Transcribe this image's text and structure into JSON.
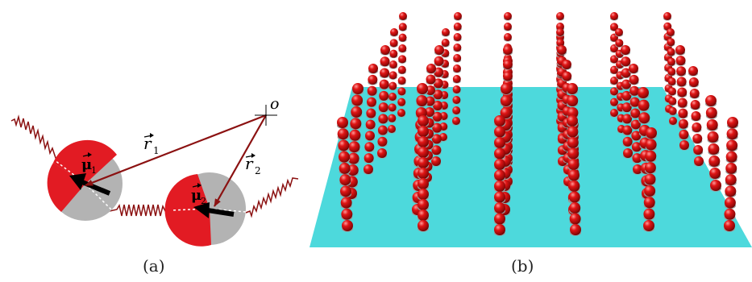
{
  "panel_a": {
    "caption": "(a)",
    "origin_label": "o",
    "vectors": [
      {
        "symbol": "r",
        "subscript": "1"
      },
      {
        "symbol": "r",
        "subscript": "2"
      }
    ],
    "dipoles": [
      {
        "symbol": "μ",
        "subscript": "1"
      },
      {
        "symbol": "μ",
        "subscript": "2"
      }
    ]
  },
  "panel_b": {
    "caption": "(b)"
  },
  "colors": {
    "dark_red": "#8b1111",
    "dipole_red": "#e21b23",
    "dipole_gray": "#b3b3b3",
    "plane_cyan": "#4dd9dc",
    "bead_red": "#d31212"
  }
}
